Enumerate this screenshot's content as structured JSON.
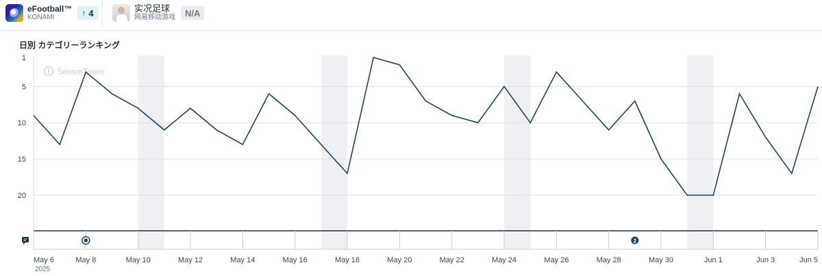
{
  "header": {
    "apps": [
      {
        "name": "eFootball™",
        "publisher": "KONAMI",
        "badge": "4",
        "icon": "efootball-app-icon"
      },
      {
        "name": "实况足球",
        "publisher": "网易移动游戏",
        "badge": "N/A",
        "icon": "jikkyo-app-icon"
      }
    ]
  },
  "chart_title": "日別 カテゴリーランキング",
  "watermark": "SensorTower",
  "colors": {
    "line": "#1e4557",
    "grid": "#dde1e5",
    "weekend": "#eef0f3",
    "axis": "#1d2b36"
  },
  "events": [
    {
      "date": "May 8",
      "icon": "update-event-icon"
    },
    {
      "date": "May 29",
      "label": "2",
      "icon": "event-count-icon"
    }
  ],
  "chart_data": {
    "type": "line",
    "title": "日別 カテゴリーランキング",
    "y_inverted": true,
    "ylim": [
      1,
      25
    ],
    "yticks": [
      1,
      5,
      10,
      15,
      20
    ],
    "grid": true,
    "x_start_year": "2025",
    "x": [
      "May 6",
      "May 7",
      "May 8",
      "May 9",
      "May 10",
      "May 11",
      "May 12",
      "May 13",
      "May 14",
      "May 15",
      "May 16",
      "May 17",
      "May 18",
      "May 19",
      "May 20",
      "May 21",
      "May 22",
      "May 23",
      "May 24",
      "May 25",
      "May 26",
      "May 27",
      "May 28",
      "May 29",
      "May 30",
      "May 31",
      "Jun 1",
      "Jun 2",
      "Jun 3",
      "Jun 4",
      "Jun 5"
    ],
    "xtick_labels": [
      "May 6",
      "May 8",
      "May 10",
      "May 12",
      "May 14",
      "May 16",
      "May 18",
      "May 20",
      "May 22",
      "May 24",
      "May 26",
      "May 28",
      "May 30",
      "Jun 1",
      "Jun 3",
      "Jun 5"
    ],
    "weekend_bands": [
      [
        "May 10",
        "May 11"
      ],
      [
        "May 17",
        "May 18"
      ],
      [
        "May 24",
        "May 25"
      ],
      [
        "May 31",
        "Jun 1"
      ]
    ],
    "series": [
      {
        "values": [
          9,
          13,
          3,
          6,
          8,
          11,
          8,
          11,
          13,
          6,
          9,
          13,
          17,
          1,
          2,
          7,
          9,
          10,
          5,
          10,
          3,
          7,
          11,
          7,
          15,
          20,
          20,
          6,
          12,
          17,
          5
        ]
      }
    ]
  }
}
